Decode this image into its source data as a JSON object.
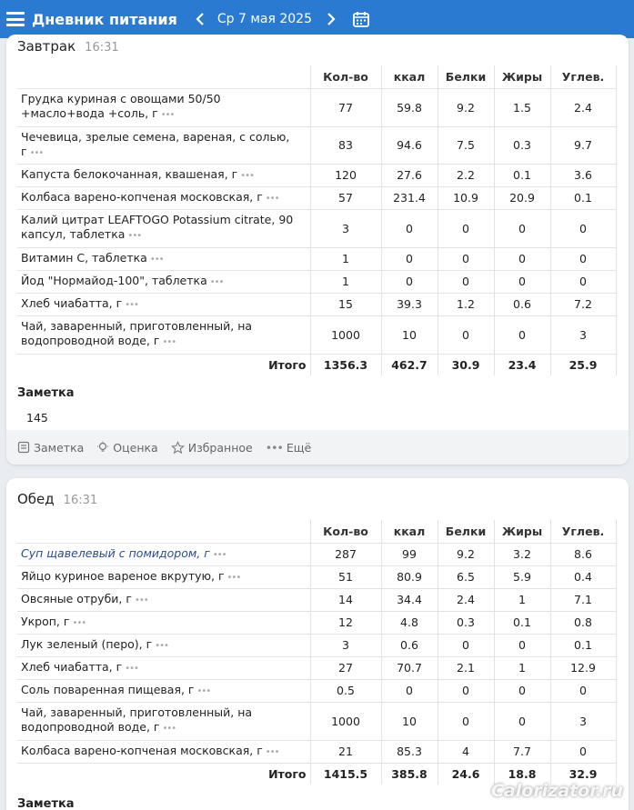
{
  "header": {
    "app_title": "Дневник питания",
    "date": "Ср 7 мая 2025"
  },
  "columns": [
    "Кол-во",
    "ккал",
    "Белки",
    "Жиры",
    "Углев."
  ],
  "breakfast": {
    "name": "Завтрак",
    "time": "16:31",
    "rows": [
      {
        "name": "Грудка куриная с овощами 50/50 +масло+вода +соль, г",
        "qty": "77",
        "kcal": "59.8",
        "protein": "9.2",
        "fat": "1.5",
        "carbs": "2.4"
      },
      {
        "name": "Чечевица, зрелые семена, вареная, с солью, г",
        "qty": "83",
        "kcal": "94.6",
        "protein": "7.5",
        "fat": "0.3",
        "carbs": "9.7"
      },
      {
        "name": "Капуста белокочанная, квашеная, г",
        "qty": "120",
        "kcal": "27.6",
        "protein": "2.2",
        "fat": "0.1",
        "carbs": "3.6"
      },
      {
        "name": "Колбаса варено-копченая московская, г",
        "qty": "57",
        "kcal": "231.4",
        "protein": "10.9",
        "fat": "20.9",
        "carbs": "0.1"
      },
      {
        "name": "Калий цитрат LEAFTOGO Potassium citrate, 90 капсул, таблетка",
        "qty": "3",
        "kcal": "0",
        "protein": "0",
        "fat": "0",
        "carbs": "0"
      },
      {
        "name": "Витамин С, таблетка",
        "qty": "1",
        "kcal": "0",
        "protein": "0",
        "fat": "0",
        "carbs": "0"
      },
      {
        "name": "Йод \"Нормайод-100\", таблетка",
        "qty": "1",
        "kcal": "0",
        "protein": "0",
        "fat": "0",
        "carbs": "0"
      },
      {
        "name": "Хлеб чиабатта, г",
        "qty": "15",
        "kcal": "39.3",
        "protein": "1.2",
        "fat": "0.6",
        "carbs": "7.2"
      },
      {
        "name": "Чай, заваренный, приготовленный, на водопроводной воде, г",
        "qty": "1000",
        "kcal": "10",
        "protein": "0",
        "fat": "0",
        "carbs": "3"
      }
    ],
    "total": {
      "label": "Итого",
      "qty": "1356.3",
      "kcal": "462.7",
      "protein": "30.9",
      "fat": "23.4",
      "carbs": "25.9"
    },
    "note_title": "Заметка",
    "note": "145",
    "actions": {
      "note": "Заметка",
      "rating": "Оценка",
      "favorite": "Избранное",
      "more": "Ещё"
    }
  },
  "lunch": {
    "name": "Обед",
    "time": "16:31",
    "rows": [
      {
        "name": "Суп щавелевый с помидором, г",
        "qty": "287",
        "kcal": "99",
        "protein": "9.2",
        "fat": "3.2",
        "carbs": "8.6"
      },
      {
        "name": "Яйцо куриное вареное вкрутую, г",
        "qty": "51",
        "kcal": "80.9",
        "protein": "6.5",
        "fat": "5.9",
        "carbs": "0.4"
      },
      {
        "name": "Овсяные отруби, г",
        "qty": "14",
        "kcal": "34.4",
        "protein": "2.4",
        "fat": "1",
        "carbs": "7.1"
      },
      {
        "name": "Укроп, г",
        "qty": "12",
        "kcal": "4.8",
        "protein": "0.3",
        "fat": "0.1",
        "carbs": "0.8"
      },
      {
        "name": "Лук зеленый (перо), г",
        "qty": "3",
        "kcal": "0.6",
        "protein": "0",
        "fat": "0",
        "carbs": "0.1"
      },
      {
        "name": "Хлеб чиабатта, г",
        "qty": "27",
        "kcal": "70.7",
        "protein": "2.1",
        "fat": "1",
        "carbs": "12.9"
      },
      {
        "name": "Соль поваренная пищевая, г",
        "qty": "0.5",
        "kcal": "0",
        "protein": "0",
        "fat": "0",
        "carbs": "0"
      },
      {
        "name": "Чай, заваренный, приготовленный, на водопроводной воде, г",
        "qty": "1000",
        "kcal": "10",
        "protein": "0",
        "fat": "0",
        "carbs": "3"
      },
      {
        "name": "Колбаса варено-копченая московская, г",
        "qty": "21",
        "kcal": "85.3",
        "protein": "4",
        "fat": "7.7",
        "carbs": "0"
      }
    ],
    "total": {
      "label": "Итого",
      "qty": "1415.5",
      "kcal": "385.8",
      "protein": "24.6",
      "fat": "18.8",
      "carbs": "32.9"
    },
    "note_title": "Заметка"
  },
  "watermark": "Calorizator.ru"
}
